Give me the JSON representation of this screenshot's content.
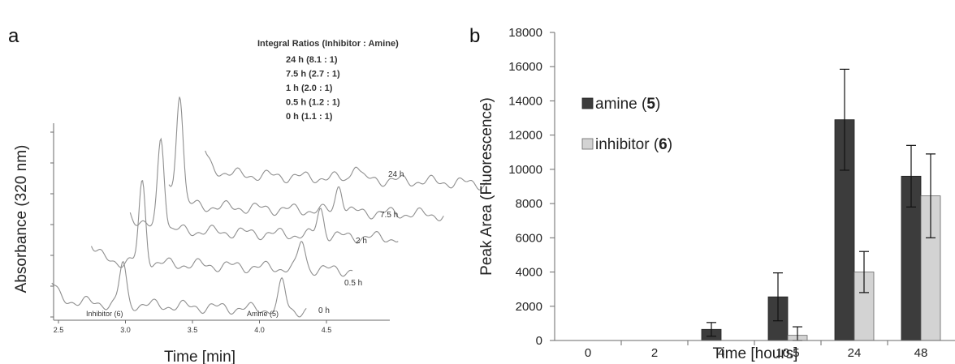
{
  "chart_data": [
    {
      "type": "line",
      "panel_label": "a",
      "xlabel": "Time [min]",
      "ylabel": "Absorbance (320 nm)",
      "x_ticks": [
        "2.5",
        "3.0",
        "3.5",
        "4.0",
        "4.5"
      ],
      "xlim": [
        2.5,
        4.8
      ],
      "legend_title": "Integral Ratios (Inhibitor : Amine)",
      "ratios": [
        "24 h (8.1 : 1)",
        "7.5 h (2.7 : 1)",
        "1 h   (2.0 : 1)",
        "0.5 h (1.2 : 1)",
        "0 h    (1.1 : 1)"
      ],
      "peak_labels": {
        "inhibitor": "Inhibitor (6)",
        "amine": "Amine (5)"
      },
      "series": [
        {
          "name": "0 h",
          "inhibitor_peak_time": 2.98,
          "amine_peak_time": 4.17,
          "inhibitor_rel": 1.1,
          "amine_rel": 1.0
        },
        {
          "name": "0.5 h",
          "inhibitor_peak_time": 2.98,
          "amine_peak_time": 4.17,
          "inhibitor_rel": 2.2,
          "amine_rel": 1.0
        },
        {
          "name": "2 h",
          "inhibitor_peak_time": 2.98,
          "amine_peak_time": 4.17,
          "inhibitor_rel": 2.6,
          "amine_rel": 1.0
        },
        {
          "name": "7.5 h",
          "inhibitor_peak_time": 2.98,
          "amine_peak_time": 4.17,
          "inhibitor_rel": 3.0,
          "amine_rel": 1.0
        },
        {
          "name": "24 h",
          "inhibitor_peak_time": 2.98,
          "amine_peak_time": 4.17,
          "inhibitor_rel": 3.8,
          "amine_rel": 0.6
        }
      ]
    },
    {
      "type": "bar",
      "panel_label": "b",
      "xlabel": "Time [hours]",
      "ylabel": "Peak Area (Fluorescence)",
      "categories": [
        "0",
        "2",
        "4",
        "10.5",
        "24",
        "48"
      ],
      "ylim": [
        0,
        18000
      ],
      "y_ticks": [
        0,
        2000,
        4000,
        6000,
        8000,
        10000,
        12000,
        14000,
        16000,
        18000
      ],
      "legend_position": "top-left",
      "series": [
        {
          "name": "amine (5)",
          "color": "#3c3c3c",
          "values": [
            0,
            0,
            650,
            2550,
            12900,
            9600
          ],
          "errors": [
            0,
            0,
            400,
            1400,
            2950,
            1800
          ]
        },
        {
          "name": "inhibitor (6)",
          "color": "#d3d3d3",
          "values": [
            0,
            0,
            0,
            300,
            4000,
            8450
          ],
          "errors": [
            0,
            0,
            0,
            500,
            1200,
            2450
          ]
        }
      ]
    }
  ]
}
